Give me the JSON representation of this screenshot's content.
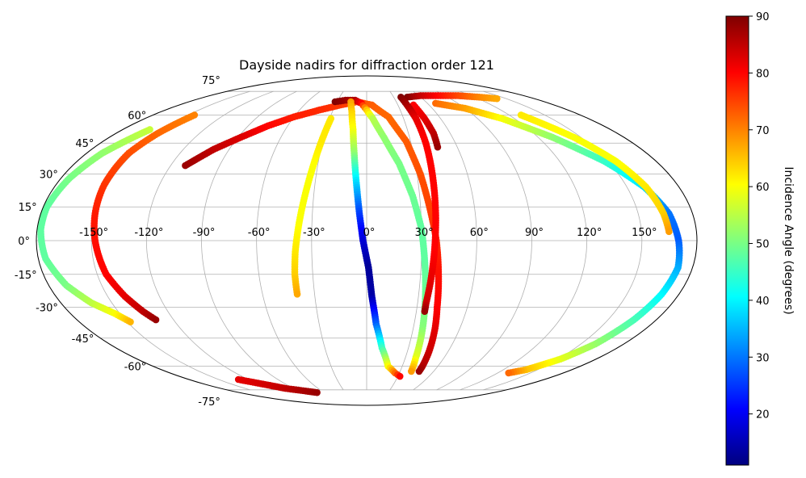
{
  "chart_data": {
    "type": "scatter",
    "projection": "mollweide",
    "title": "Dayside nadirs for diffraction order 121",
    "xlabel": "",
    "ylabel": "",
    "grid": true,
    "lon_ticks": [
      {
        "value": -150,
        "label": "-150°"
      },
      {
        "value": -120,
        "label": "-120°"
      },
      {
        "value": -90,
        "label": "-90°"
      },
      {
        "value": -60,
        "label": "-60°"
      },
      {
        "value": -30,
        "label": "-30°"
      },
      {
        "value": 0,
        "label": "0°"
      },
      {
        "value": 30,
        "label": "30°"
      },
      {
        "value": 60,
        "label": "60°"
      },
      {
        "value": 90,
        "label": "90°"
      },
      {
        "value": 120,
        "label": "120°"
      },
      {
        "value": 150,
        "label": "150°"
      }
    ],
    "lat_ticks": [
      {
        "value": 75,
        "label": "75°"
      },
      {
        "value": 60,
        "label": "60°"
      },
      {
        "value": 45,
        "label": "45°"
      },
      {
        "value": 30,
        "label": "30°"
      },
      {
        "value": 15,
        "label": "15°"
      },
      {
        "value": 0,
        "label": "0°"
      },
      {
        "value": -15,
        "label": "-15°"
      },
      {
        "value": -30,
        "label": "-30°"
      },
      {
        "value": -45,
        "label": "-45°"
      },
      {
        "value": -60,
        "label": "-60°"
      },
      {
        "value": -75,
        "label": "-75°"
      }
    ],
    "colorbar": {
      "label": "Incidence Angle (degrees)",
      "min": 11,
      "max": 90,
      "colormap": "jet",
      "ticks": [
        {
          "value": 20,
          "label": "20"
        },
        {
          "value": 30,
          "label": "30"
        },
        {
          "value": 40,
          "label": "40"
        },
        {
          "value": 50,
          "label": "50"
        },
        {
          "value": 60,
          "label": "60"
        },
        {
          "value": 70,
          "label": "70"
        },
        {
          "value": 80,
          "label": "80"
        },
        {
          "value": 90,
          "label": "90"
        }
      ]
    },
    "series": [
      {
        "points": [
          [
            -111,
            34,
            88
          ],
          [
            -100,
            42,
            85
          ],
          [
            -88,
            48,
            83
          ],
          [
            -75,
            54,
            80
          ],
          [
            -60,
            59,
            78
          ],
          [
            -42,
            63,
            77
          ],
          [
            -25,
            66,
            76
          ],
          [
            -10,
            68,
            74
          ],
          [
            5,
            66,
            73
          ],
          [
            18,
            59,
            72
          ],
          [
            27,
            46,
            73
          ],
          [
            32,
            30,
            74
          ],
          [
            35,
            15,
            75
          ],
          [
            38,
            0,
            77
          ],
          [
            40,
            -15,
            79
          ],
          [
            42,
            -30,
            80
          ],
          [
            44,
            -40,
            82
          ],
          [
            46,
            -52,
            84
          ],
          [
            47,
            -60,
            86
          ],
          [
            47,
            -63,
            88
          ]
        ]
      },
      {
        "points": [
          [
            -32,
            68,
            90
          ],
          [
            -22,
            69,
            88
          ],
          [
            -12,
            69,
            86
          ],
          [
            -5,
            67,
            80
          ],
          [
            0,
            63,
            65
          ],
          [
            5,
            58,
            55
          ],
          [
            12,
            48,
            52
          ],
          [
            20,
            35,
            50
          ],
          [
            26,
            20,
            49
          ],
          [
            30,
            5,
            48
          ],
          [
            32,
            -10,
            48
          ],
          [
            34,
            -25,
            49
          ],
          [
            36,
            -40,
            51
          ],
          [
            38,
            -55,
            58
          ],
          [
            40,
            -63,
            68
          ]
        ]
      },
      {
        "points": [
          [
            -16,
            68,
            68
          ],
          [
            -13,
            62,
            64
          ],
          [
            -10,
            52,
            60
          ],
          [
            -8,
            40,
            52
          ],
          [
            -6,
            26,
            38
          ],
          [
            -4,
            12,
            26
          ],
          [
            -2,
            0,
            18
          ],
          [
            1,
            -12,
            13
          ],
          [
            3,
            -25,
            14
          ],
          [
            6,
            -38,
            28
          ],
          [
            11,
            -50,
            45
          ],
          [
            18,
            -60,
            60
          ],
          [
            26,
            -64,
            72
          ],
          [
            32,
            -66,
            80
          ]
        ]
      },
      {
        "points": [
          [
            -160,
            52,
            56
          ],
          [
            -170,
            40,
            52
          ],
          [
            -175,
            28,
            50
          ],
          [
            -178,
            15,
            48
          ],
          [
            -178,
            5,
            48
          ],
          [
            -176,
            -8,
            48
          ],
          [
            -170,
            -20,
            50
          ],
          [
            -162,
            -28,
            55
          ],
          [
            -153,
            -33,
            60
          ],
          [
            -148,
            -37,
            66
          ]
        ]
      },
      {
        "points": [
          [
            -145,
            60,
            70
          ],
          [
            -150,
            50,
            72
          ],
          [
            -153,
            40,
            74
          ],
          [
            -152,
            25,
            76
          ],
          [
            -150,
            12,
            78
          ],
          [
            -148,
            0,
            79
          ],
          [
            -145,
            -15,
            80
          ],
          [
            -140,
            -25,
            82
          ],
          [
            -135,
            -32,
            85
          ],
          [
            -131,
            -36,
            88
          ]
        ]
      },
      {
        "points": [
          [
            -29,
            58,
            62
          ],
          [
            -31,
            45,
            62
          ],
          [
            -33,
            32,
            60
          ],
          [
            -35,
            20,
            60
          ],
          [
            -37,
            8,
            60
          ],
          [
            -39,
            -5,
            62
          ],
          [
            -40,
            -15,
            64
          ],
          [
            -40,
            -24,
            67
          ]
        ]
      },
      {
        "points": [
          [
            45,
            71,
            90
          ],
          [
            62,
            72,
            85
          ],
          [
            82,
            72,
            80
          ],
          [
            105,
            72,
            75
          ],
          [
            125,
            71,
            70
          ],
          [
            140,
            70,
            67
          ]
        ]
      },
      {
        "points": [
          [
            45,
            66,
            80
          ],
          [
            47,
            58,
            82
          ],
          [
            48,
            50,
            85
          ],
          [
            47,
            43,
            88
          ]
        ]
      },
      {
        "points": [
          [
            68,
            67,
            72
          ],
          [
            90,
            64,
            68
          ],
          [
            110,
            58,
            60
          ],
          [
            130,
            48,
            52
          ],
          [
            148,
            36,
            45
          ],
          [
            160,
            24,
            38
          ],
          [
            167,
            12,
            30
          ],
          [
            170,
            0,
            28
          ],
          [
            172,
            -12,
            34
          ],
          [
            170,
            -24,
            40
          ],
          [
            166,
            -36,
            46
          ],
          [
            160,
            -48,
            52
          ],
          [
            152,
            -56,
            58
          ],
          [
            140,
            -62,
            65
          ],
          [
            130,
            -64,
            72
          ]
        ]
      },
      {
        "points": [
          [
            130,
            60,
            62
          ],
          [
            145,
            48,
            60
          ],
          [
            155,
            36,
            60
          ],
          [
            161,
            24,
            62
          ],
          [
            164,
            12,
            64
          ],
          [
            165,
            4,
            68
          ]
        ]
      },
      {
        "points": [
          [
            38,
            71,
            90
          ],
          [
            40,
            58,
            82
          ],
          [
            40,
            45,
            80
          ],
          [
            39,
            28,
            80
          ],
          [
            38,
            10,
            80
          ],
          [
            37,
            -5,
            80
          ],
          [
            36,
            -18,
            82
          ],
          [
            35,
            -28,
            84
          ],
          [
            35,
            -32,
            88
          ]
        ]
      },
      {
        "points": [
          [
            -130,
            -68,
            82
          ],
          [
            -100,
            -74,
            85
          ],
          [
            -70,
            -77,
            88
          ]
        ]
      }
    ]
  }
}
